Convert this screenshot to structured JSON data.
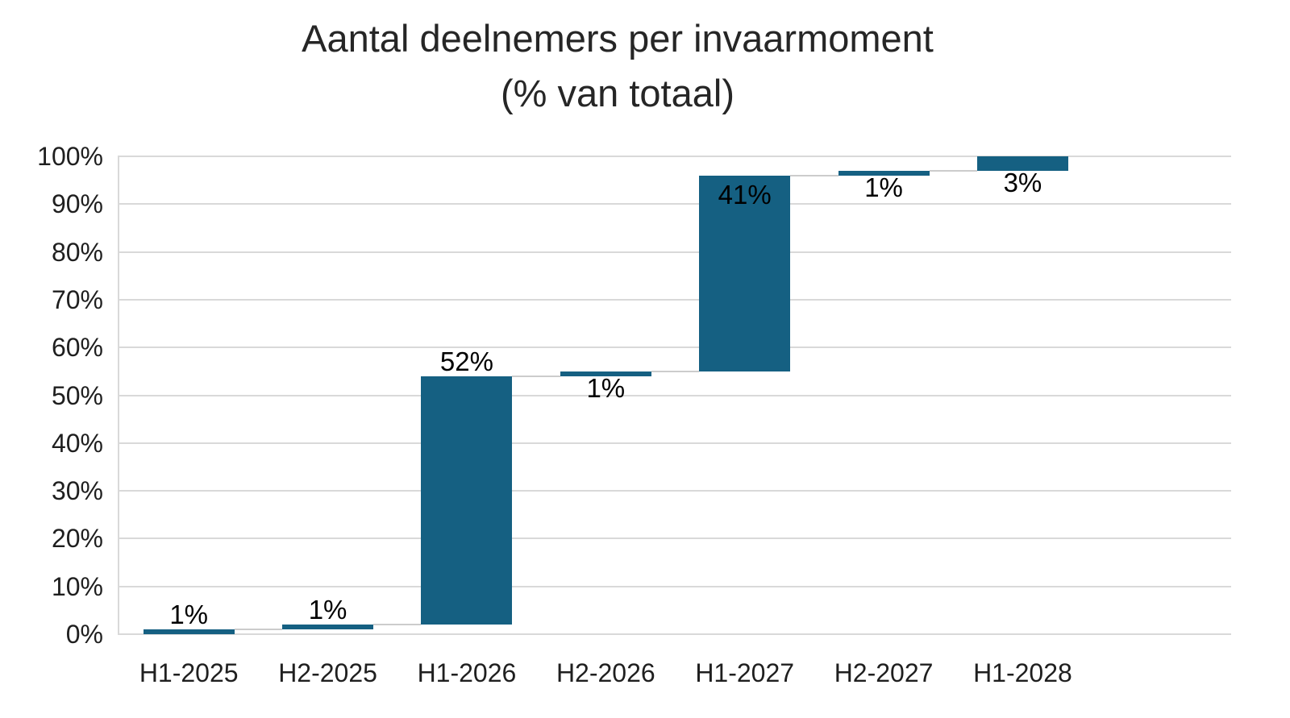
{
  "title": {
    "line1": "Aantal deelnemers per invaarmoment",
    "line2": "(% van totaal)"
  },
  "chart_data": {
    "type": "bar",
    "subtype": "waterfall",
    "title": "Aantal deelnemers per invaarmoment (% van totaal)",
    "xlabel": "",
    "ylabel": "",
    "legend": "none",
    "grid": true,
    "categories": [
      "H1-2025",
      "H2-2025",
      "H1-2026",
      "H2-2026",
      "H1-2027",
      "H2-2027",
      "H1-2028"
    ],
    "values": [
      1,
      1,
      52,
      1,
      41,
      1,
      3
    ],
    "cumulative_end": [
      1,
      2,
      54,
      55,
      96,
      97,
      100
    ],
    "points": [
      {
        "category": "H1-2025",
        "value": 1,
        "start": 0,
        "end": 1,
        "label": "1%",
        "label_position": "above"
      },
      {
        "category": "H2-2025",
        "value": 1,
        "start": 1,
        "end": 2,
        "label": "1%",
        "label_position": "above"
      },
      {
        "category": "H1-2026",
        "value": 52,
        "start": 2,
        "end": 54,
        "label": "52%",
        "label_position": "above"
      },
      {
        "category": "H2-2026",
        "value": 1,
        "start": 54,
        "end": 55,
        "label": "1%",
        "label_position": "below"
      },
      {
        "category": "H1-2027",
        "value": 41,
        "start": 55,
        "end": 96,
        "label": "41%",
        "label_position": "inside"
      },
      {
        "category": "H2-2027",
        "value": 1,
        "start": 96,
        "end": 97,
        "label": "1%",
        "label_position": "below"
      },
      {
        "category": "H1-2028",
        "value": 3,
        "start": 97,
        "end": 100,
        "label": "3%",
        "label_position": "below"
      }
    ],
    "y_axis": {
      "min": 0,
      "max": 100,
      "step": 10,
      "tick_labels": [
        "0%",
        "10%",
        "20%",
        "30%",
        "40%",
        "50%",
        "60%",
        "70%",
        "80%",
        "90%",
        "100%"
      ]
    },
    "num_slots": 8,
    "colors": {
      "bar": "#156082",
      "gridline": "#D9D9D9",
      "connector": "#CCCCCC",
      "title_text": "#262626",
      "axis_text": "#1F1F1F",
      "label_text": "#000000",
      "background": "#FFFFFF"
    }
  }
}
